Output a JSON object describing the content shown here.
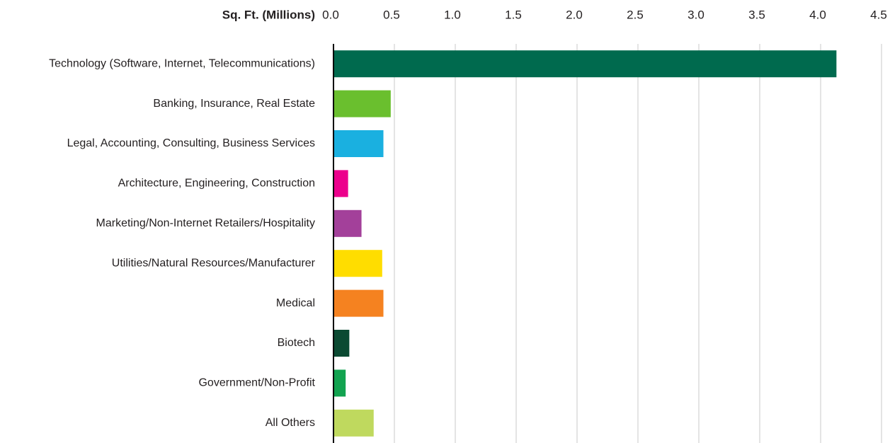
{
  "chart_data": {
    "type": "barh",
    "title": "Sq. Ft. (Millions)",
    "categories": [
      "Technology (Software, Internet, Telecommunications)",
      "Banking, Insurance, Real Estate",
      "Legal, Accounting, Consulting, Business Services",
      "Architecture, Engineering, Construction",
      "Marketing/Non-Internet Retailers/Hospitality",
      "Utilities/Natural Resources/Manufacturer",
      "Medical",
      "Biotech",
      "Government/Non-Profit",
      "All Others"
    ],
    "values": [
      4.13,
      0.47,
      0.41,
      0.12,
      0.23,
      0.4,
      0.41,
      0.13,
      0.1,
      0.33
    ],
    "colors": [
      "#006a4e",
      "#6abf2e",
      "#1ab0e0",
      "#ec008c",
      "#a3409a",
      "#ffdd00",
      "#f58220",
      "#0b4a32",
      "#12a350",
      "#bfd95e"
    ],
    "xlim": [
      0,
      4.5
    ],
    "xticks": [
      {
        "value": 0,
        "label": "0.0"
      },
      0.5,
      {
        "value": 1,
        "label": "1.0"
      },
      1.5,
      {
        "value": 2,
        "label": "2.0"
      },
      2.5,
      {
        "value": 3,
        "label": "3.0"
      },
      3.5,
      {
        "value": 4,
        "label": "4.0"
      },
      4.5
    ],
    "grid": true
  }
}
